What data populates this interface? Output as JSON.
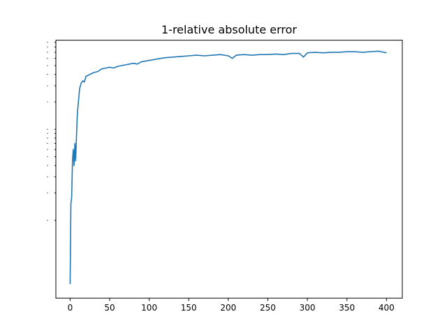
{
  "chart_data": {
    "type": "line",
    "title": "1-relative absolute error",
    "xlabel": "",
    "ylabel": "",
    "xlim": [
      -18,
      420
    ],
    "xticks": [
      0,
      50,
      100,
      150,
      200,
      250,
      300,
      350,
      400
    ],
    "xtick_labels": [
      "0",
      "50",
      "100",
      "150",
      "200",
      "250",
      "300",
      "350",
      "400"
    ],
    "yscale": "log",
    "ytick_labels_note": "y tick labels rendered as tiny unreadable marks",
    "grid": false,
    "legend": "none",
    "colors": {
      "series": "#1f77b4"
    },
    "series": [
      {
        "x": [
          0,
          1,
          2,
          3,
          4,
          5,
          6,
          7,
          8,
          9,
          10,
          12,
          14,
          16,
          18,
          20,
          25,
          30,
          35,
          40,
          45,
          50,
          55,
          60,
          65,
          70,
          75,
          80,
          85,
          90,
          95,
          100,
          110,
          120,
          130,
          140,
          150,
          160,
          170,
          180,
          190,
          200,
          205,
          210,
          220,
          230,
          240,
          250,
          260,
          270,
          280,
          290,
          295,
          300,
          310,
          320,
          330,
          340,
          350,
          360,
          370,
          380,
          390,
          400
        ],
        "values": [
          0.0002,
          0.0015,
          0.0018,
          0.0045,
          0.006,
          0.004,
          0.007,
          0.0045,
          0.008,
          0.014,
          0.018,
          0.028,
          0.032,
          0.034,
          0.033,
          0.038,
          0.04,
          0.042,
          0.043,
          0.046,
          0.047,
          0.048,
          0.047,
          0.049,
          0.05,
          0.051,
          0.052,
          0.053,
          0.052,
          0.055,
          0.056,
          0.057,
          0.059,
          0.061,
          0.062,
          0.063,
          0.064,
          0.065,
          0.064,
          0.065,
          0.066,
          0.064,
          0.06,
          0.065,
          0.066,
          0.065,
          0.066,
          0.066,
          0.067,
          0.066,
          0.068,
          0.068,
          0.062,
          0.069,
          0.07,
          0.069,
          0.07,
          0.07,
          0.071,
          0.071,
          0.07,
          0.071,
          0.072,
          0.069
        ]
      }
    ]
  }
}
